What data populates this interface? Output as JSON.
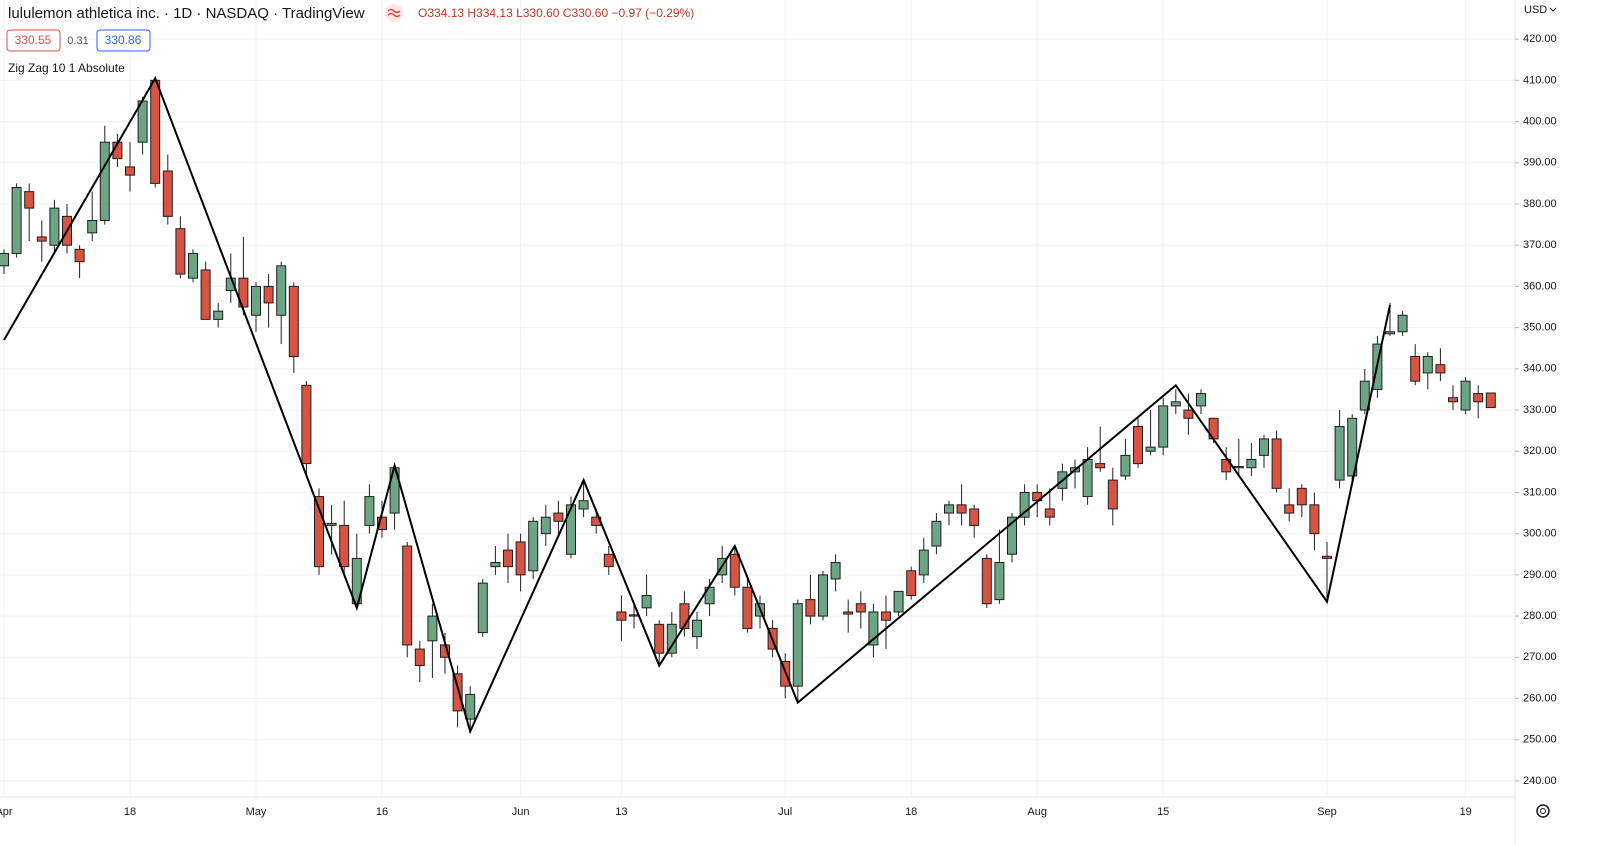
{
  "header": {
    "title": "lululemon athletica inc. · 1D · NASDAQ · TradingView",
    "ohlc": "O334.13 H334.13 L330.60 C330.60 −0.97 (−0.29%)",
    "bid": "330.55",
    "spread": "0.31",
    "ask": "330.86",
    "indicator": "Zig Zag 10 1 Absolute",
    "currency": "USD"
  },
  "chart_data": {
    "type": "candlestick",
    "categories": [
      "Apr",
      null,
      null,
      null,
      null,
      null,
      null,
      null,
      null,
      null,
      "18",
      null,
      null,
      null,
      null,
      null,
      null,
      null,
      null,
      null,
      "May",
      null,
      null,
      null,
      null,
      null,
      null,
      null,
      null,
      null,
      "16",
      null,
      null,
      null,
      null,
      null,
      null,
      null,
      null,
      null,
      null,
      "Jun",
      null,
      null,
      null,
      null,
      null,
      null,
      null,
      "13",
      null,
      null,
      null,
      null,
      null,
      null,
      null,
      null,
      null,
      null,
      null,
      null,
      "Jul",
      null,
      null,
      null,
      null,
      null,
      null,
      null,
      null,
      null,
      "18",
      null,
      null,
      null,
      null,
      null,
      null,
      null,
      null,
      null,
      "Aug",
      null,
      null,
      null,
      null,
      null,
      null,
      null,
      null,
      null,
      "15",
      null,
      null,
      null,
      null,
      null,
      null,
      null,
      null,
      null,
      null,
      null,
      null,
      "Sep",
      null,
      null,
      null,
      null,
      null,
      null,
      null,
      null,
      null,
      null,
      "19",
      null,
      null
    ],
    "open": [
      365,
      368,
      383,
      372,
      370,
      377,
      369,
      373,
      376,
      395,
      389,
      395,
      410,
      388,
      374,
      362,
      364,
      352,
      359,
      362,
      353,
      360,
      353,
      360,
      336,
      309,
      302,
      302,
      283,
      302,
      304,
      305,
      297,
      272,
      274,
      273,
      266,
      255,
      276,
      292,
      296,
      298,
      291,
      300,
      305,
      295,
      306,
      304,
      295,
      281,
      280,
      282,
      278,
      271,
      283,
      275,
      283,
      290,
      295,
      287,
      280,
      277,
      269,
      263,
      284,
      280,
      289,
      281,
      283,
      273,
      281,
      281,
      291,
      290,
      297,
      305,
      307,
      306,
      294,
      284,
      295,
      304,
      310,
      306,
      311,
      315,
      309,
      317,
      313,
      314,
      326,
      320,
      321,
      331,
      330,
      331,
      328,
      318,
      316,
      316,
      319,
      323,
      307,
      311,
      307,
      294.5,
      313,
      314,
      330,
      335,
      348.5,
      349,
      343,
      339,
      341,
      333,
      330,
      334,
      334.13
    ],
    "high": [
      369,
      385,
      385,
      376,
      381,
      380,
      370,
      383,
      399,
      397,
      395,
      406,
      411,
      392,
      377,
      369,
      366,
      356,
      368,
      372,
      361,
      363,
      366,
      361,
      337,
      311,
      307,
      308,
      300,
      312,
      308,
      317,
      298,
      274,
      283,
      276,
      268,
      263,
      289,
      297,
      300,
      300,
      304,
      307,
      308,
      309,
      313,
      306,
      297,
      285,
      283,
      290,
      279,
      281,
      286,
      281,
      289,
      297,
      297,
      290,
      285,
      279,
      271,
      284,
      290,
      291,
      295,
      284,
      286,
      283,
      285,
      286,
      292,
      299,
      305,
      308,
      312,
      307,
      295,
      301,
      305,
      312,
      312,
      311,
      317,
      318,
      321,
      326,
      316,
      323,
      328,
      330,
      333,
      335,
      334,
      335,
      328,
      321,
      323,
      322,
      324,
      325,
      311,
      312,
      310,
      298,
      330,
      329,
      340,
      348,
      356,
      354,
      346,
      344,
      345,
      336,
      338,
      336,
      334.13
    ],
    "low": [
      363,
      367,
      371,
      366,
      368,
      368,
      362,
      371,
      375,
      389,
      383,
      392,
      384,
      375,
      362,
      361,
      352,
      350,
      356,
      353,
      349,
      350,
      346,
      339,
      314,
      290,
      295,
      290,
      282,
      300,
      299,
      301,
      270,
      264,
      265,
      266,
      253,
      252,
      275,
      290,
      288,
      286,
      289,
      297,
      300,
      294,
      304,
      300,
      290,
      274,
      277,
      280,
      268,
      270,
      275,
      272,
      280,
      288,
      285,
      276,
      277,
      270,
      260,
      259,
      278,
      279,
      286,
      276,
      277,
      270,
      272,
      280,
      284,
      288,
      295,
      302,
      302,
      299,
      282,
      283,
      293,
      302,
      304,
      302,
      308,
      311,
      307,
      315,
      302,
      313,
      316,
      319,
      319,
      329,
      324,
      329,
      322,
      313,
      314,
      314,
      316,
      310,
      303,
      304,
      296,
      284,
      311,
      312,
      329,
      333,
      348,
      348,
      336,
      335,
      337,
      330,
      329,
      328,
      330.6
    ],
    "close": [
      368,
      384,
      379,
      371,
      379,
      370,
      366,
      376,
      395,
      391,
      387,
      405,
      385,
      377,
      363,
      368,
      352,
      354,
      362,
      355,
      360,
      356,
      365,
      343,
      317,
      292,
      302.5,
      292,
      294,
      309,
      301,
      316,
      273,
      268,
      280,
      270,
      257,
      261,
      288,
      293,
      292,
      290,
      303,
      304,
      303,
      307,
      308,
      302,
      292,
      279,
      280.3,
      285,
      271,
      278,
      277,
      279,
      287,
      294,
      287,
      277,
      283,
      272,
      263,
      283,
      280,
      290,
      293,
      280.5,
      281,
      281,
      279,
      286,
      285,
      296,
      303,
      307,
      305,
      302,
      283,
      293,
      304,
      310,
      308,
      304,
      315,
      316,
      318,
      316,
      306,
      319,
      317,
      321,
      331,
      332,
      328,
      334,
      323,
      315,
      316.3,
      318,
      323,
      311,
      305,
      307,
      300,
      294,
      326,
      328,
      337,
      346,
      349,
      353,
      337,
      343,
      339,
      332,
      337,
      332,
      330.6
    ],
    "up_color": "#6ba583",
    "down_color": "#d75442",
    "border_color": "#1f1f1f",
    "zigzag": {
      "x": [
        0,
        12,
        28,
        31,
        37,
        46,
        52,
        58,
        63,
        93,
        105,
        110
      ],
      "values": [
        347,
        410.5,
        282,
        316.5,
        252,
        313,
        268,
        297,
        259,
        336,
        283.5,
        355.5
      ],
      "color": "#000000"
    },
    "ylim": [
      236.1,
      429.5
    ],
    "yticks": [
      {
        "value": 240,
        "label": "240.00"
      },
      {
        "value": 250,
        "label": "250.00"
      },
      {
        "value": 260,
        "label": "260.00"
      },
      {
        "value": 270,
        "label": "270.00"
      },
      {
        "value": 280,
        "label": "280.00"
      },
      {
        "value": 290,
        "label": "290.00"
      },
      {
        "value": 300,
        "label": "300.00"
      },
      {
        "value": 310,
        "label": "310.00"
      },
      {
        "value": 320,
        "label": "320.00"
      },
      {
        "value": 330,
        "label": "330.00"
      },
      {
        "value": 340,
        "label": "340.00"
      },
      {
        "value": 350,
        "label": "350.00"
      },
      {
        "value": 360,
        "label": "360.00"
      },
      {
        "value": 370,
        "label": "370.00"
      },
      {
        "value": 380,
        "label": "380.00"
      },
      {
        "value": 390,
        "label": "390.00"
      },
      {
        "value": 400,
        "label": "400.00"
      },
      {
        "value": 410,
        "label": "410.00"
      },
      {
        "value": 420,
        "label": "420.00"
      }
    ],
    "grid": true
  }
}
